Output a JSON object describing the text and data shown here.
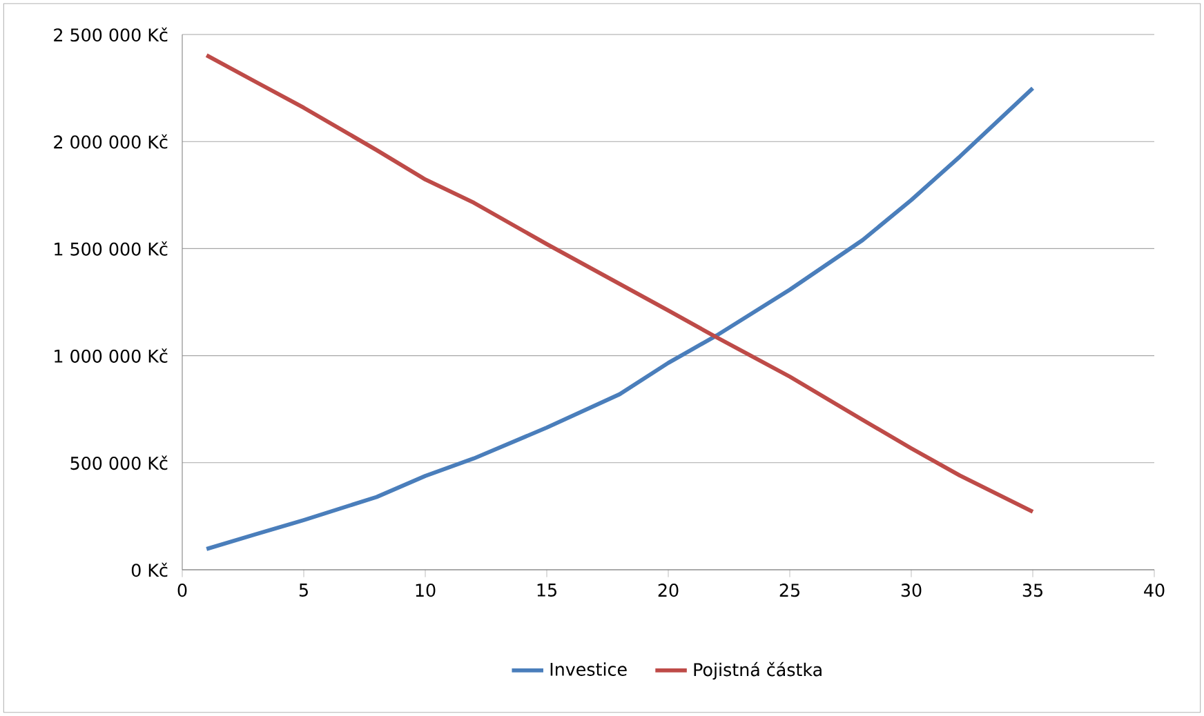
{
  "chart_data": {
    "type": "line",
    "x": [
      1,
      3,
      5,
      8,
      10,
      12,
      15,
      18,
      20,
      22,
      25,
      28,
      30,
      32,
      35
    ],
    "series": [
      {
        "name": "Investice",
        "color": "#4a7ebb",
        "values": [
          97000,
          165000,
          232000,
          340000,
          438000,
          520000,
          664000,
          820000,
          966000,
          1095000,
          1308000,
          1540000,
          1727000,
          1930000,
          2249000
        ]
      },
      {
        "name": "Pojistná částka",
        "color": "#be4b48",
        "values": [
          2403000,
          2280000,
          2158000,
          1960000,
          1823000,
          1714000,
          1521000,
          1335000,
          1211000,
          1085000,
          902000,
          700000,
          567000,
          440000,
          271000
        ]
      }
    ],
    "xlim": [
      0,
      40
    ],
    "xticks": [
      0,
      5,
      10,
      15,
      20,
      25,
      30,
      35,
      40
    ],
    "ylim": [
      0,
      2500000
    ],
    "yticks": [
      {
        "value": 0,
        "label": "0 Kč"
      },
      {
        "value": 500000,
        "label": "500 000 Kč"
      },
      {
        "value": 1000000,
        "label": "1 000 000 Kč"
      },
      {
        "value": 1500000,
        "label": "1 500 000 Kč"
      },
      {
        "value": 2000000,
        "label": "2 000 000 Kč"
      },
      {
        "value": 2500000,
        "label": "2 500 000 Kč"
      }
    ],
    "grid": "y",
    "legend": "bottom",
    "marker": "none",
    "line_style": "solid"
  }
}
